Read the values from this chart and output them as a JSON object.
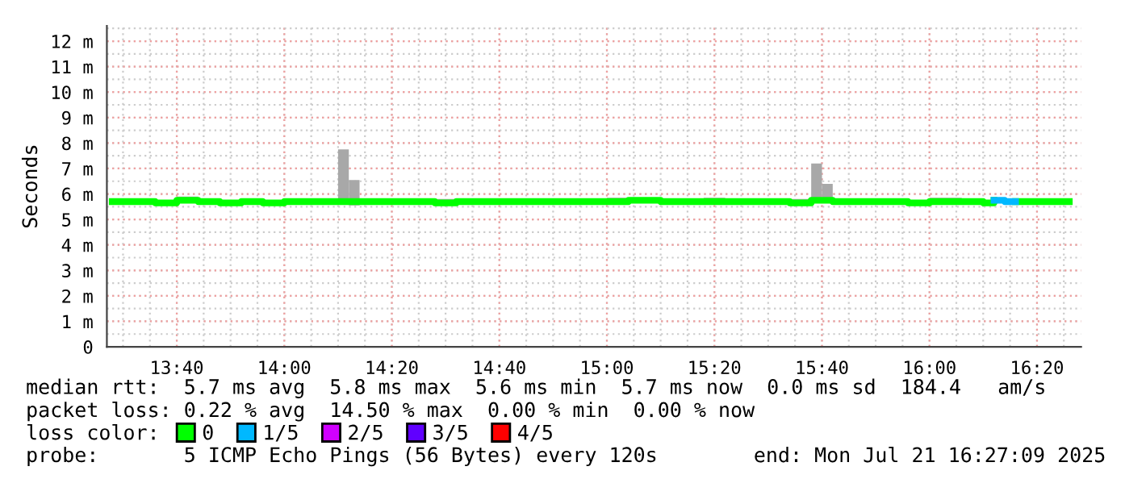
{
  "chart_data": {
    "type": "step",
    "ylabel": "Seconds",
    "legend_title": "loss color:",
    "legend": "bottom",
    "grid": true,
    "x": [
      13.4667,
      13.6,
      13.6667,
      13.7333,
      13.8,
      13.8667,
      13.9333,
      14.0,
      14.0667,
      14.1667,
      14.2,
      14.2333,
      14.4,
      14.4667,
      14.5333,
      14.6,
      14.7667,
      15.0,
      15.0667,
      15.1667,
      15.3,
      15.3667,
      15.4667,
      15.5667,
      15.6333,
      15.6667,
      15.7,
      15.8333,
      15.9333,
      16.0,
      16.1,
      16.1667,
      16.2,
      16.2333,
      16.2667,
      16.4333
    ],
    "series": [
      {
        "name": "0",
        "color": "#00ff00",
        "values": [
          5.7,
          5.65,
          5.75,
          5.7,
          5.65,
          5.7,
          5.65,
          5.7,
          5.7,
          5.7,
          5.7,
          5.7,
          5.7,
          5.65,
          5.7,
          5.7,
          5.7,
          5.7,
          5.75,
          5.7,
          5.7,
          5.7,
          5.7,
          5.65,
          5.75,
          5.75,
          5.7,
          5.7,
          5.65,
          5.7,
          5.7,
          5.65,
          5.75,
          null,
          5.7,
          5.7
        ],
        "lower": [
          5.65,
          5.6,
          5.7,
          5.6,
          5.6,
          5.65,
          5.6,
          5.65,
          5.65,
          5.65,
          5.55,
          5.65,
          5.65,
          5.6,
          5.65,
          5.65,
          5.65,
          5.65,
          5.7,
          5.65,
          5.65,
          5.65,
          5.6,
          5.6,
          5.7,
          5.7,
          5.65,
          5.6,
          5.6,
          5.65,
          5.65,
          5.6,
          null,
          null,
          5.65,
          5.65
        ],
        "upper": [
          5.75,
          5.75,
          5.9,
          5.8,
          5.75,
          5.8,
          5.75,
          5.75,
          5.75,
          7.75,
          6.55,
          5.75,
          5.8,
          5.8,
          5.75,
          5.8,
          5.8,
          5.85,
          5.75,
          5.75,
          5.85,
          5.8,
          5.8,
          5.8,
          7.2,
          6.4,
          5.8,
          5.75,
          5.75,
          5.85,
          5.75,
          5.75,
          null,
          null,
          5.75,
          5.75
        ]
      },
      {
        "name": "1/5",
        "color": "#00b8ff",
        "values": [
          null,
          null,
          null,
          null,
          null,
          null,
          null,
          null,
          null,
          null,
          null,
          null,
          null,
          null,
          null,
          null,
          null,
          null,
          null,
          null,
          null,
          null,
          null,
          null,
          null,
          null,
          null,
          null,
          null,
          null,
          null,
          null,
          5.75,
          5.7,
          5.7,
          null
        ]
      },
      {
        "name": "2/5",
        "color": "#d000ff",
        "values": [
          null,
          null,
          null,
          null,
          null,
          null,
          null,
          null,
          null,
          null,
          null,
          null,
          null,
          null,
          null,
          null,
          null,
          null,
          null,
          null,
          null,
          null,
          null,
          null,
          null,
          null,
          null,
          null,
          null,
          null,
          null,
          null,
          null,
          null,
          null,
          null
        ]
      },
      {
        "name": "3/5",
        "color": "#6000ff",
        "values": [
          null,
          null,
          null,
          null,
          null,
          null,
          null,
          null,
          null,
          null,
          null,
          null,
          null,
          null,
          null,
          null,
          null,
          null,
          null,
          null,
          null,
          null,
          null,
          null,
          null,
          null,
          null,
          null,
          null,
          null,
          null,
          null,
          null,
          null,
          null,
          null
        ]
      },
      {
        "name": "4/5",
        "color": "#ff0000",
        "values": [
          null,
          null,
          null,
          null,
          null,
          null,
          null,
          null,
          null,
          null,
          null,
          null,
          null,
          null,
          null,
          null,
          null,
          null,
          null,
          null,
          null,
          null,
          null,
          null,
          null,
          null,
          null,
          null,
          null,
          null,
          null,
          null,
          null,
          null,
          null,
          null
        ]
      }
    ],
    "xlim": [
      13.45,
      16.47
    ],
    "xticks": [
      {
        "value": 13.6667,
        "label": "13:40"
      },
      {
        "value": 14.0,
        "label": "14:00"
      },
      {
        "value": 14.3333,
        "label": "14:20"
      },
      {
        "value": 14.6667,
        "label": "14:40"
      },
      {
        "value": 15.0,
        "label": "15:00"
      },
      {
        "value": 15.3333,
        "label": "15:20"
      },
      {
        "value": 15.6667,
        "label": "15:40"
      },
      {
        "value": 16.0,
        "label": "16:00"
      },
      {
        "value": 16.3333,
        "label": "16:20"
      }
    ],
    "ylim": [
      0,
      12.6
    ],
    "yticks": [
      0,
      {
        "value": 1,
        "label": "1 m"
      },
      {
        "value": 2,
        "label": "2 m"
      },
      {
        "value": 3,
        "label": "3 m"
      },
      {
        "value": 4,
        "label": "4 m"
      },
      {
        "value": 5,
        "label": "5 m"
      },
      {
        "value": 6,
        "label": "6 m"
      },
      {
        "value": 7,
        "label": "7 m"
      },
      {
        "value": 8,
        "label": "8 m"
      },
      {
        "value": 9,
        "label": "9 m"
      },
      {
        "value": 10,
        "label": "10 m"
      },
      {
        "value": 11,
        "label": "11 m"
      },
      {
        "value": 12,
        "label": "12 m"
      }
    ],
    "annotations": [
      "median rtt:  5.7 ms avg  5.8 ms max  5.6 ms min  5.7 ms now  0.0 ms sd  184.4   am/s",
      "packet loss: 0.22 % avg  14.50 % max  0.00 % min  0.00 % now",
      "probe:       5 ICMP Echo Pings (56 Bytes) every 120s",
      "end: Mon Jul 21 16:27:09 2025"
    ]
  }
}
